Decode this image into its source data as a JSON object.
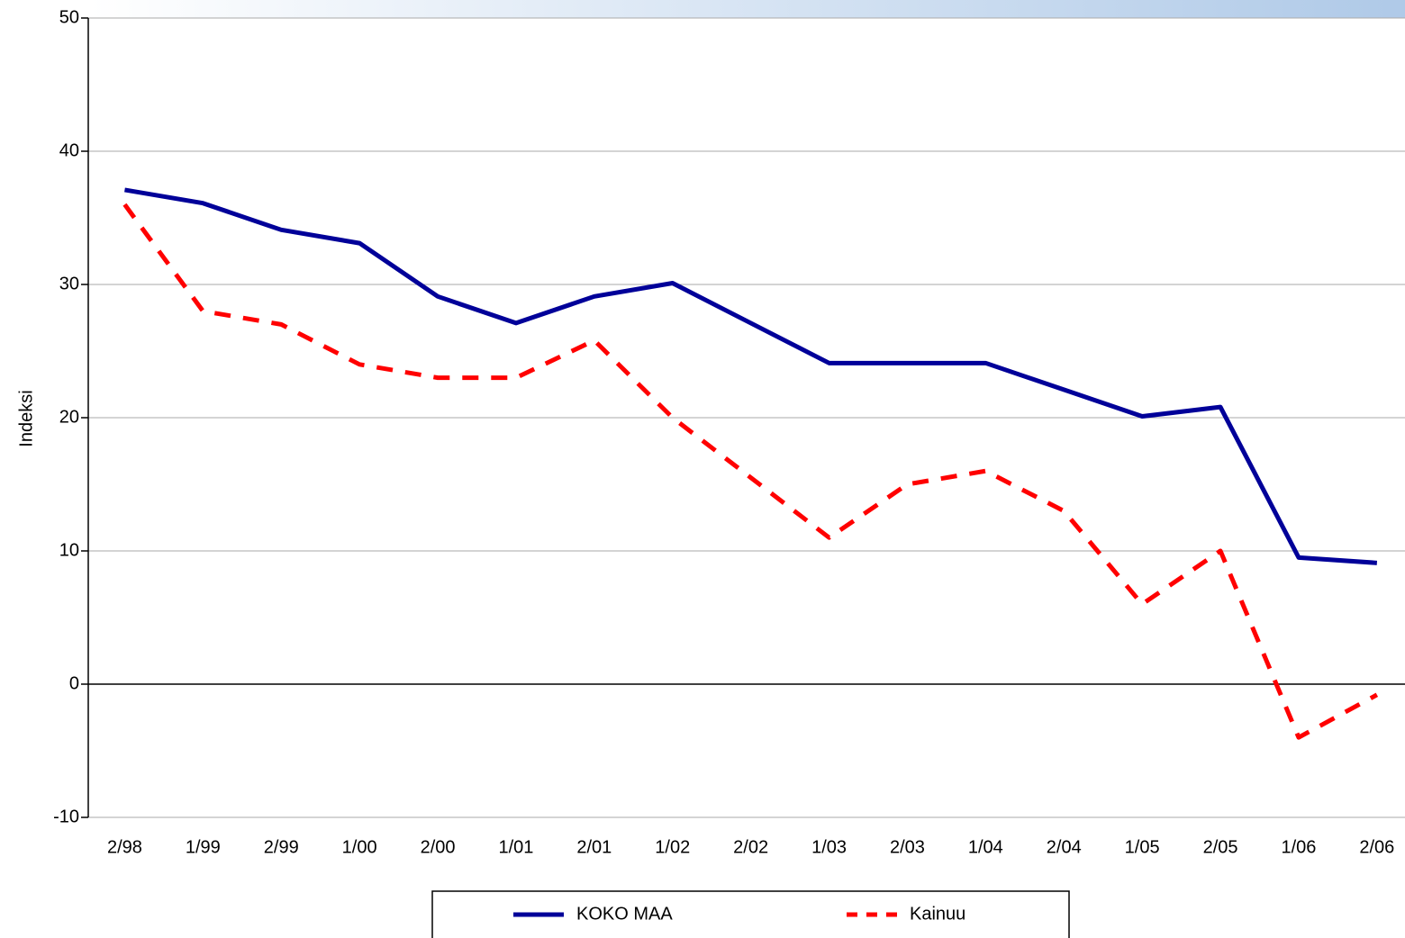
{
  "chart_data": {
    "type": "line",
    "y_label": "Indeksi",
    "categories": [
      "2/98",
      "1/99",
      "2/99",
      "1/00",
      "2/00",
      "1/01",
      "2/01",
      "1/02",
      "2/02",
      "1/03",
      "2/03",
      "1/04",
      "2/04",
      "1/05",
      "2/05",
      "1/06",
      "2/06"
    ],
    "series": [
      {
        "name": "KOKO MAA",
        "color": "#000099",
        "dash": false,
        "values": [
          37.1,
          36.1,
          34.1,
          33.1,
          29.1,
          27.1,
          29.1,
          30.1,
          27.1,
          24.1,
          24.1,
          24.1,
          22.1,
          20.1,
          20.8,
          9.5,
          9.1
        ]
      },
      {
        "name": "Kainuu",
        "color": "#ff0000",
        "dash": true,
        "values": [
          36,
          28,
          27,
          24,
          23,
          23,
          25.8,
          20,
          15.5,
          11,
          15,
          16,
          13,
          6,
          10,
          -4,
          -0.8
        ]
      }
    ],
    "ylim": [
      -10,
      50
    ],
    "yticks": [
      -10,
      0,
      10,
      20,
      30,
      40,
      50
    ],
    "grid": true
  }
}
